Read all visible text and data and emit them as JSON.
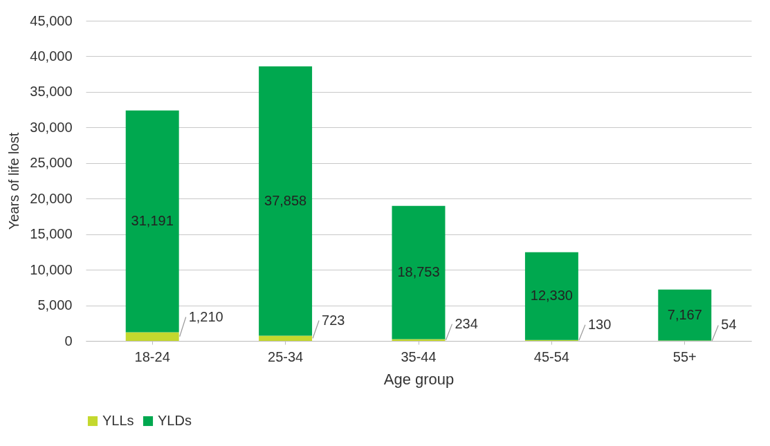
{
  "chart_data": {
    "type": "bar",
    "stacked": true,
    "xlabel": "Age group",
    "ylabel": "Years of life lost",
    "categories": [
      "18-24",
      "25-34",
      "35-44",
      "45-54",
      "55+"
    ],
    "series": [
      {
        "name": "YLLs",
        "color": "#c4d82e",
        "values": [
          1210,
          723,
          234,
          130,
          54
        ],
        "value_labels": [
          "1,210",
          "723",
          "234",
          "130",
          "54"
        ]
      },
      {
        "name": "YLDs",
        "color": "#00a84f",
        "values": [
          31191,
          37858,
          18753,
          12330,
          7167
        ],
        "value_labels": [
          "31,191",
          "37,858",
          "18,753",
          "12,330",
          "7,167"
        ]
      }
    ],
    "ylim": [
      0,
      45000
    ],
    "yticks": [
      0,
      {
        "value": 5000,
        "label": "5,000"
      },
      {
        "value": 10000,
        "label": "10,000"
      },
      {
        "value": 15000,
        "label": "15,000"
      },
      {
        "value": 20000,
        "label": "20,000"
      },
      {
        "value": 25000,
        "label": "25,000"
      },
      {
        "value": 30000,
        "label": "30,000"
      },
      {
        "value": 35000,
        "label": "35,000"
      },
      {
        "value": 40000,
        "label": "40,000"
      },
      {
        "value": 45000,
        "label": "45,000"
      }
    ],
    "grid": "y",
    "legend": "bottom"
  }
}
